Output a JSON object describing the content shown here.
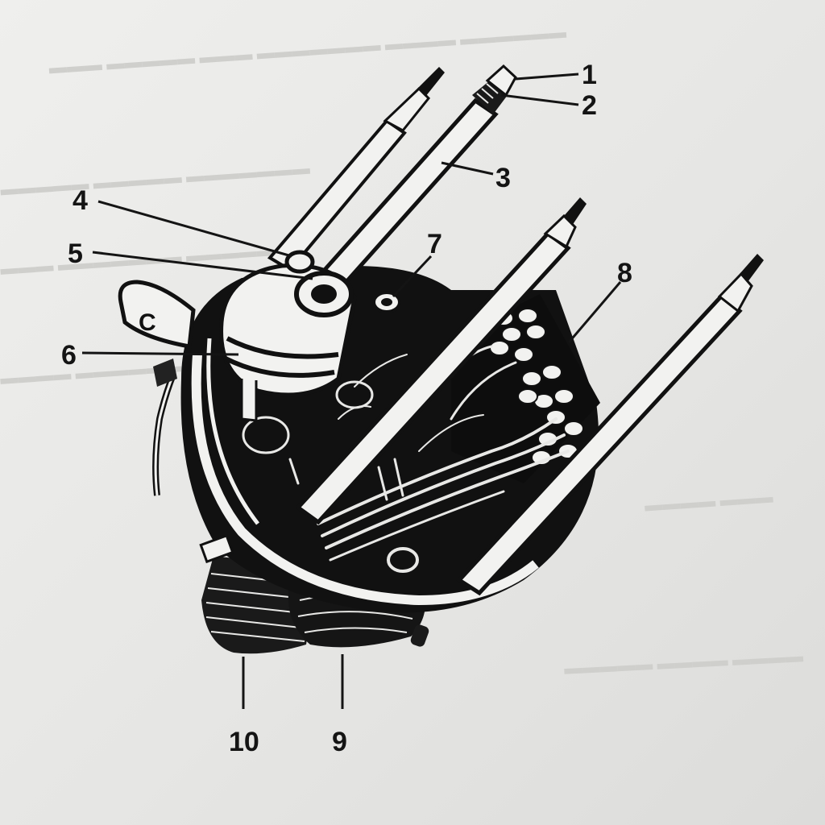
{
  "callouts": [
    {
      "id": "1",
      "label": "1"
    },
    {
      "id": "2",
      "label": "2"
    },
    {
      "id": "3",
      "label": "3"
    },
    {
      "id": "4",
      "label": "4"
    },
    {
      "id": "5",
      "label": "5"
    },
    {
      "id": "6",
      "label": "6"
    },
    {
      "id": "7",
      "label": "7"
    },
    {
      "id": "8",
      "label": "8"
    },
    {
      "id": "9",
      "label": "9"
    },
    {
      "id": "10",
      "label": "10"
    }
  ],
  "mounting_tab_mark": "C",
  "colors": {
    "paper": "#e8e8e6",
    "ink": "#141414",
    "highlight": "#f2f2f0"
  }
}
